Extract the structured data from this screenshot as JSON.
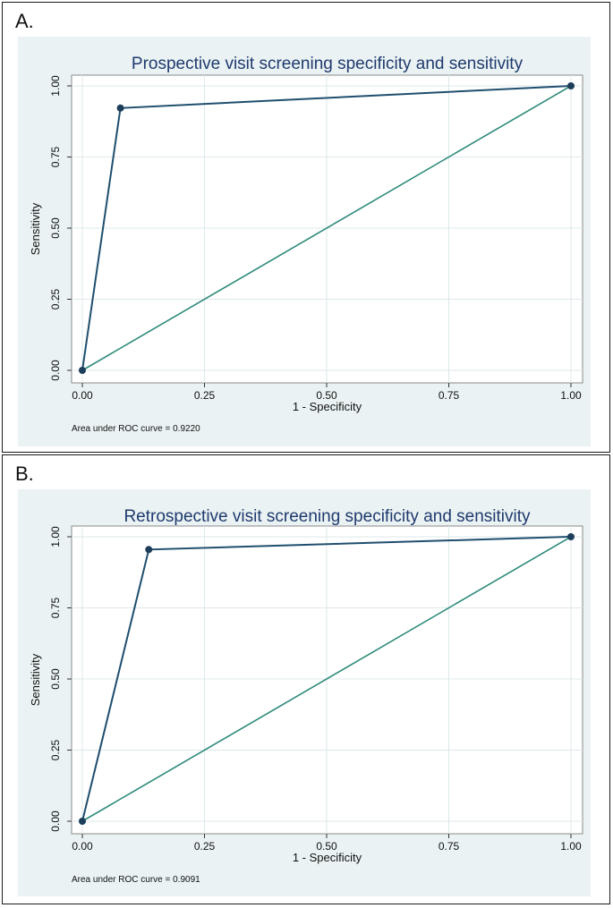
{
  "chart_data": [
    {
      "type": "line",
      "panel_label": "A.",
      "title": "Prospective visit screening specificity and sensitivity",
      "xlabel": "1 - Specificity",
      "ylabel": "Sensitivity",
      "xlim": [
        0,
        1
      ],
      "ylim": [
        0,
        1
      ],
      "xticks": [
        "0.00",
        "0.25",
        "0.50",
        "0.75",
        "1.00"
      ],
      "yticks": [
        "0.00",
        "0.25",
        "0.50",
        "0.75",
        "1.00"
      ],
      "grid": true,
      "series": [
        {
          "name": "ROC curve",
          "x": [
            0,
            0.078,
            1
          ],
          "y": [
            0,
            0.922,
            1
          ],
          "markers": true,
          "color": "#1f4e6e"
        },
        {
          "name": "Reference line",
          "x": [
            0,
            1
          ],
          "y": [
            0,
            1
          ],
          "markers": false,
          "color": "#2e8b7a"
        }
      ],
      "annotation": "Area under ROC curve = 0.9220"
    },
    {
      "type": "line",
      "panel_label": "B.",
      "title": "Retrospective visit screening specificity and sensitivity",
      "xlabel": "1 - Specificity",
      "ylabel": "Sensitivity",
      "xlim": [
        0,
        1
      ],
      "ylim": [
        0,
        1
      ],
      "xticks": [
        "0.00",
        "0.25",
        "0.50",
        "0.75",
        "1.00"
      ],
      "yticks": [
        "0.00",
        "0.25",
        "0.50",
        "0.75",
        "1.00"
      ],
      "grid": true,
      "series": [
        {
          "name": "ROC curve",
          "x": [
            0,
            0.136,
            1
          ],
          "y": [
            0,
            0.955,
            1
          ],
          "markers": true,
          "color": "#1f4e6e"
        },
        {
          "name": "Reference line",
          "x": [
            0,
            1
          ],
          "y": [
            0,
            1
          ],
          "markers": false,
          "color": "#2e8b7a"
        }
      ],
      "annotation": "Area under ROC curve = 0.9091"
    }
  ]
}
